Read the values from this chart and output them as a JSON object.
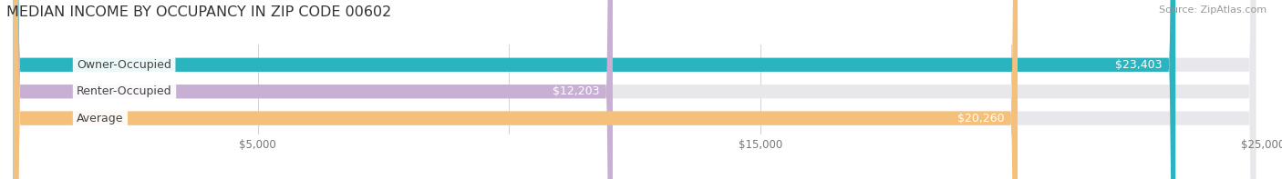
{
  "title": "MEDIAN INCOME BY OCCUPANCY IN ZIP CODE 00602",
  "source": "Source: ZipAtlas.com",
  "categories": [
    "Owner-Occupied",
    "Renter-Occupied",
    "Average"
  ],
  "values": [
    23403,
    12203,
    20260
  ],
  "bar_colors": [
    "#29b4bf",
    "#c9afd4",
    "#f5c07a"
  ],
  "bar_bg_color": "#e8e8ec",
  "value_labels": [
    "$23,403",
    "$12,203",
    "$20,260"
  ],
  "xmax": 25000,
  "xticks": [
    0,
    5000,
    10000,
    15000,
    20000,
    25000
  ],
  "xtick_labels": [
    "",
    "$5,000",
    "",
    "$15,000",
    "",
    "$25,000"
  ],
  "title_fontsize": 11.5,
  "label_fontsize": 9,
  "tick_fontsize": 8.5,
  "source_fontsize": 8,
  "background_color": "#ffffff"
}
